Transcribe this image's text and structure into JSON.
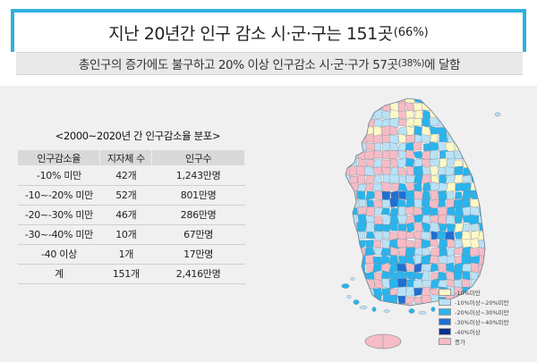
{
  "header": {
    "title_main": "지난 20년간 인구 감소 시·군·구는 151곳",
    "title_pct": "(66%)",
    "subtitle_a": "총인구의 증가에도 불구하고 20% 이상 인구감소 시·군·구가 57곳",
    "subtitle_pct": "(38%)",
    "subtitle_b": "에 달함"
  },
  "table": {
    "title": "<2000~2020년 간 인구감소율 분포>",
    "headers": [
      "인구감소율",
      "지자체 수",
      "인구수"
    ],
    "rows": [
      [
        "-10% 미만",
        "42개",
        "1,243만명"
      ],
      [
        "-10~-20% 미만",
        "52개",
        "801만명"
      ],
      [
        "-20~-30% 미만",
        "46개",
        "286만명"
      ],
      [
        "-30~-40% 미만",
        "10개",
        "67만명"
      ],
      [
        "-40 이상",
        "1개",
        "17만명"
      ],
      [
        "계",
        "151개",
        "2,416만명"
      ]
    ]
  },
  "legend": [
    {
      "label": "-10%미만",
      "color": "#fff8c6"
    },
    {
      "label": "-10%이상~20%미만",
      "color": "#b9e2f7"
    },
    {
      "label": "-20%이상~30%미만",
      "color": "#2ab4ec"
    },
    {
      "label": "-30%이상~40%미만",
      "color": "#1f6fd1"
    },
    {
      "label": "-40%이상",
      "color": "#0b2f8f"
    },
    {
      "label": "증가",
      "color": "#f6bcc6"
    }
  ],
  "map_colors": {
    "lt10": "#fff8c6",
    "r10_20": "#b9e2f7",
    "r20_30": "#2ab4ec",
    "r30_40": "#1f6fd1",
    "ge40": "#0b2f8f",
    "increase": "#f6bcc6",
    "border": "#7d8c99"
  }
}
